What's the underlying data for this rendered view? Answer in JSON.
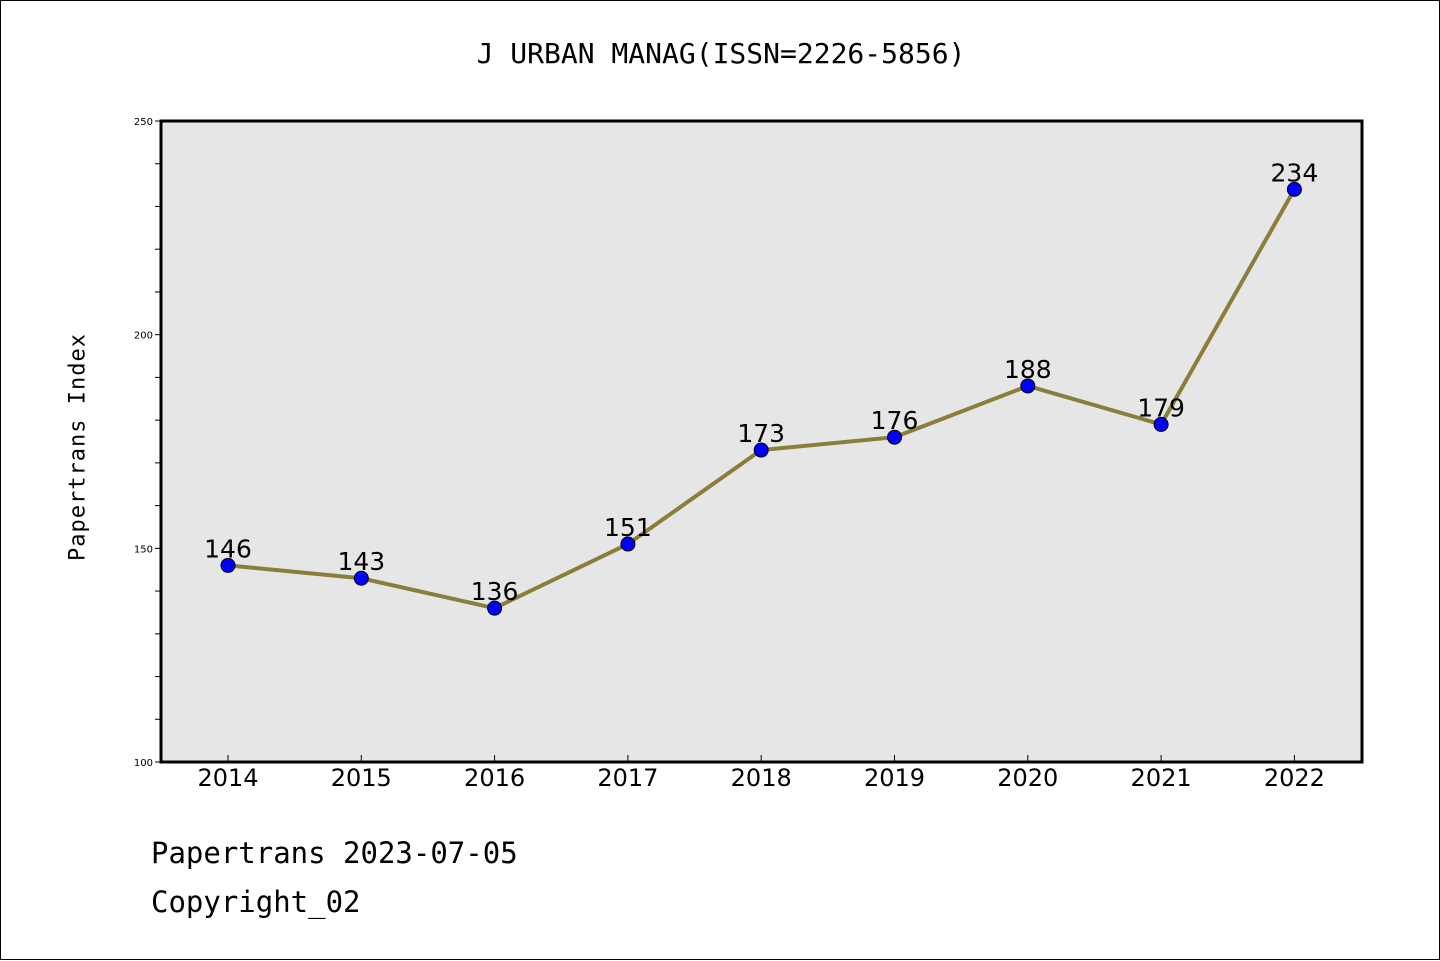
{
  "title": "J URBAN MANAG(ISSN=2226-5856)",
  "footer": {
    "date_line": "Papertrans 2023-07-05",
    "copyright": "Copyright_02"
  },
  "colors": {
    "plot_background": "#e6e6e6",
    "line": "#8b7d3a",
    "marker": "#0000ff"
  },
  "chart_data": {
    "type": "line",
    "title": "J URBAN MANAG(ISSN=2226-5856)",
    "xlabel": "",
    "ylabel": "Papertrans Index",
    "categories": [
      "2014",
      "2015",
      "2016",
      "2017",
      "2018",
      "2019",
      "2020",
      "2021",
      "2022"
    ],
    "series": [
      {
        "values": [
          146,
          143,
          136,
          151,
          173,
          176,
          188,
          179,
          234
        ]
      }
    ],
    "data_labels": [
      "146",
      "143",
      "136",
      "151",
      "173",
      "176",
      "188",
      "179",
      "234"
    ],
    "ylim": [
      100,
      250
    ],
    "yticks": [
      "100",
      "150",
      "200",
      "250"
    ],
    "grid": false,
    "legend": "none"
  }
}
